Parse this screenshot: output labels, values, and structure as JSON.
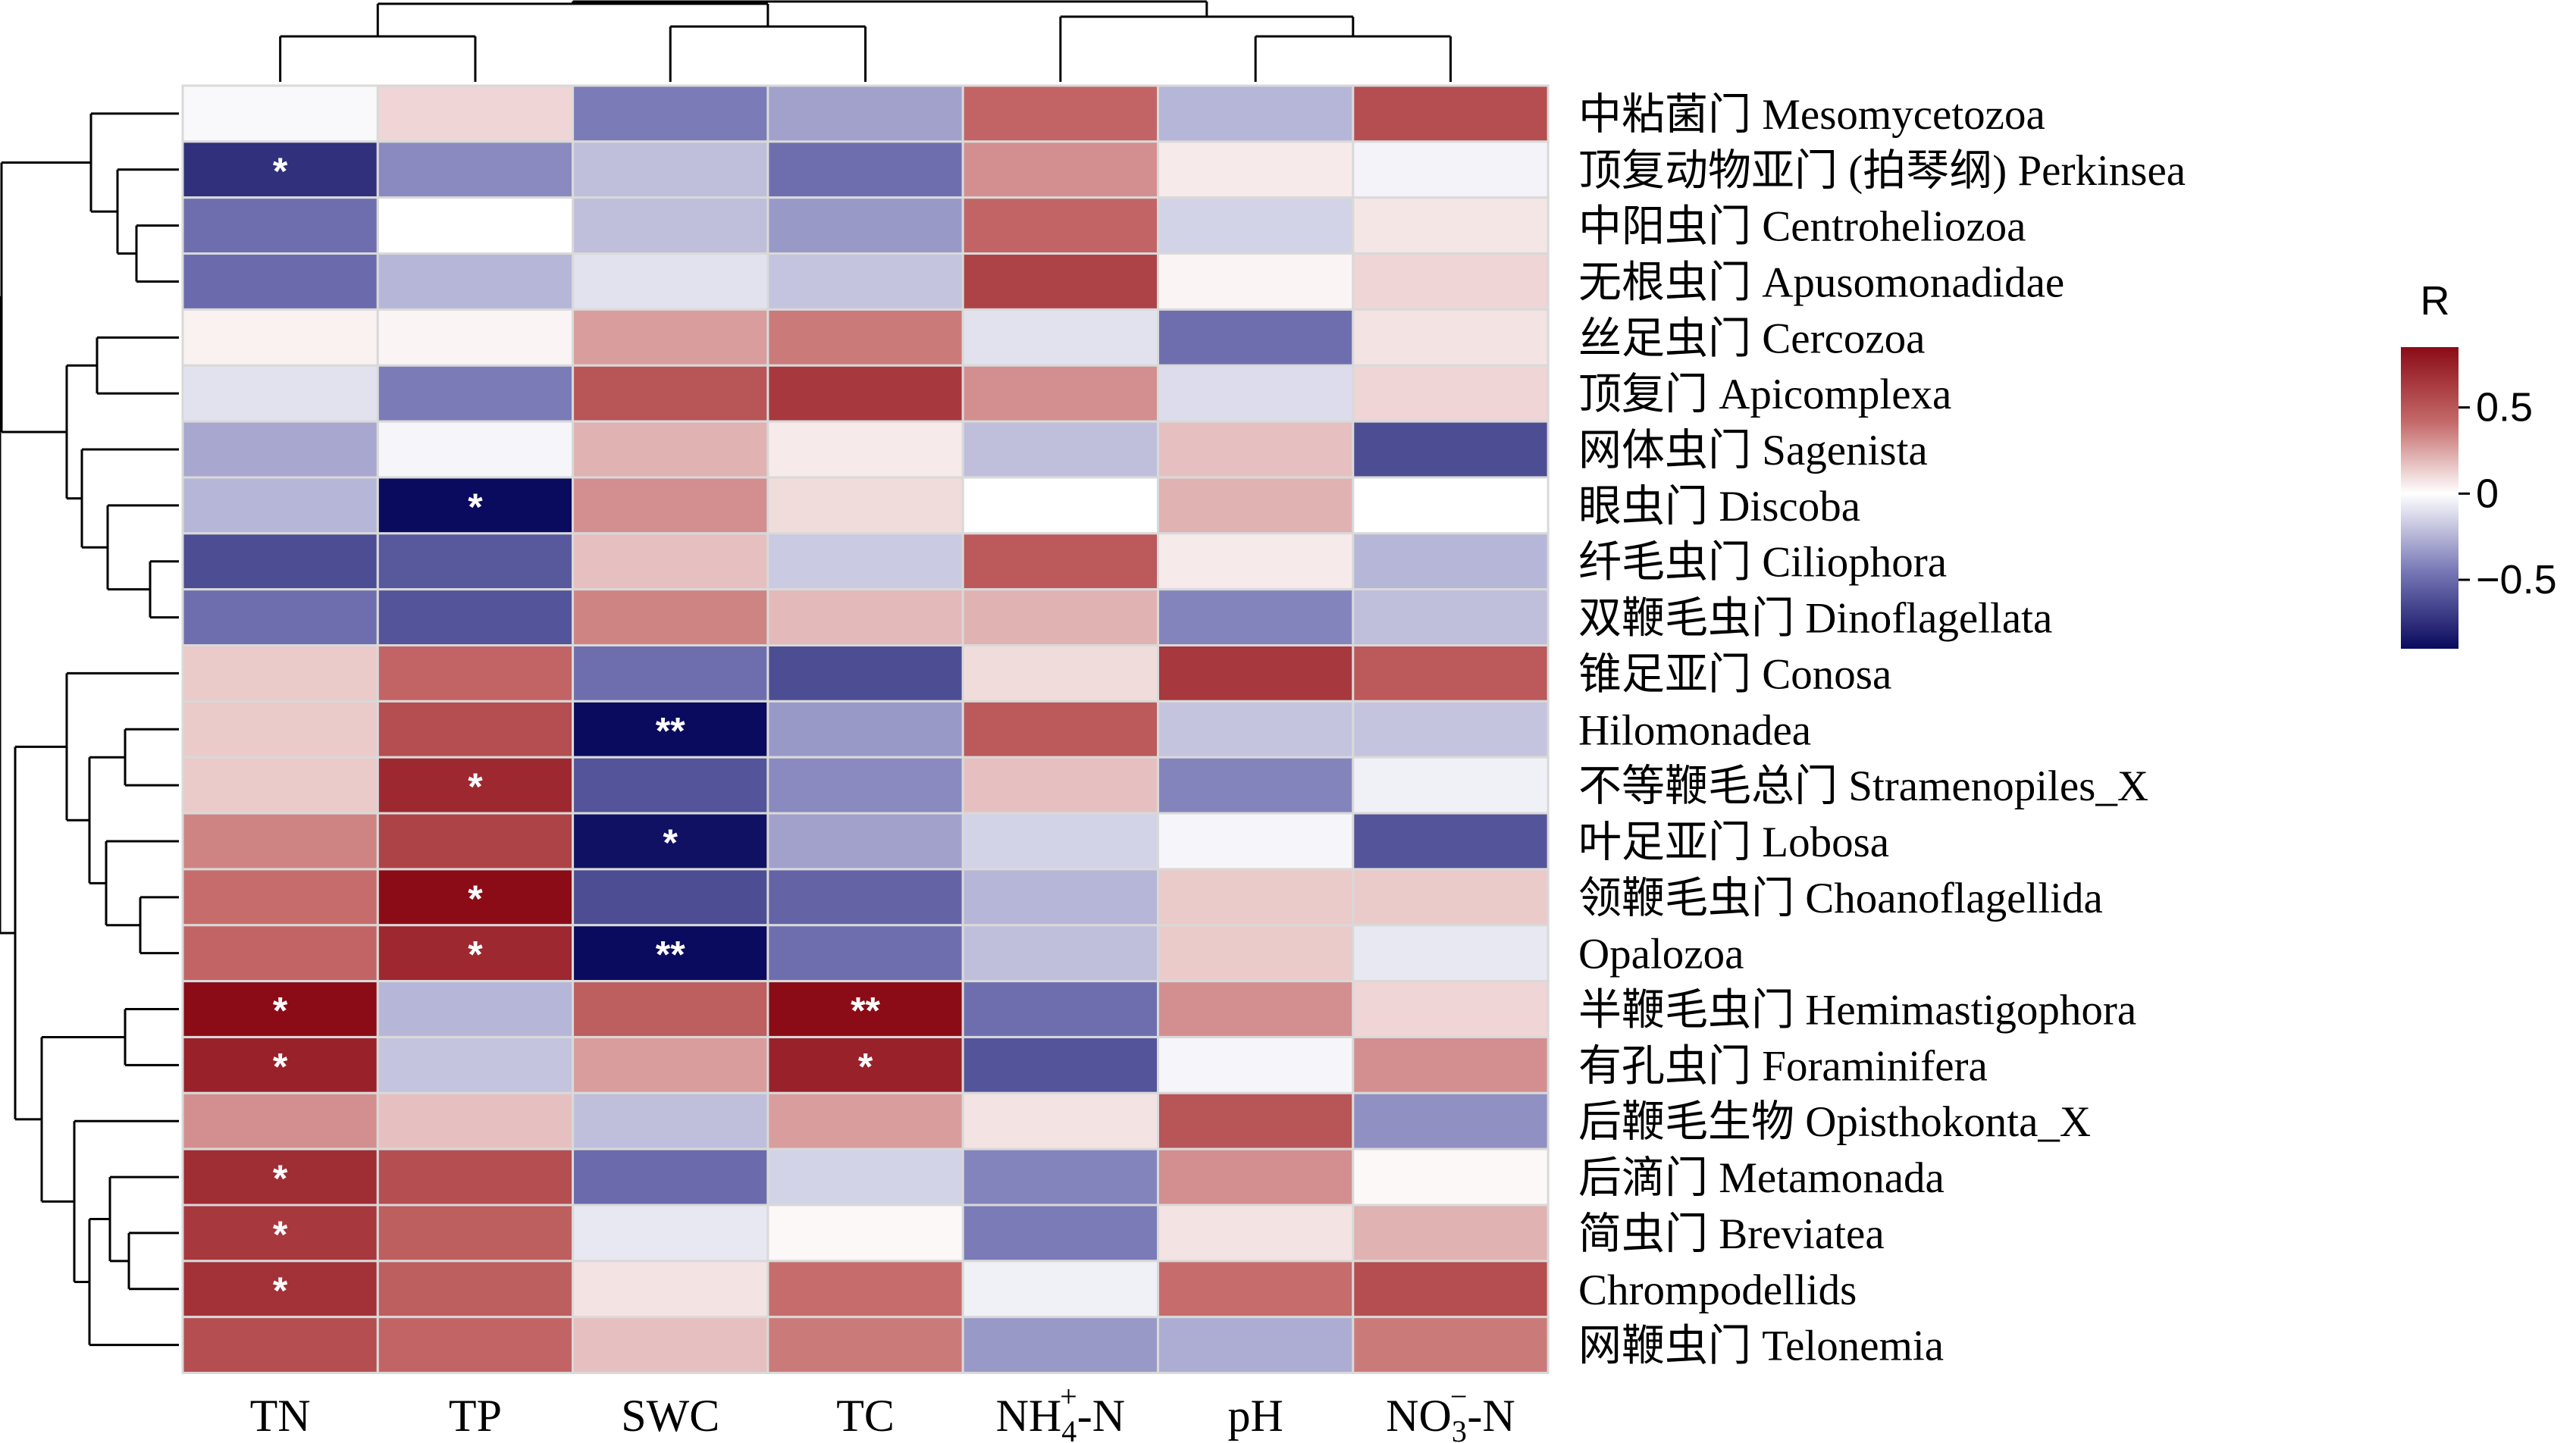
{
  "chart_data": {
    "type": "heatmap",
    "columns": [
      "TN",
      "TP",
      "SWC",
      "TC",
      "NH4+-N",
      "pH",
      "NO3−-N"
    ],
    "column_labels": [
      {
        "base": "TN",
        "sup": "",
        "sub": "",
        "tail": ""
      },
      {
        "base": "TP",
        "sup": "",
        "sub": "",
        "tail": ""
      },
      {
        "base": "SWC",
        "sup": "",
        "sub": "",
        "tail": ""
      },
      {
        "base": "TC",
        "sup": "",
        "sub": "",
        "tail": ""
      },
      {
        "base": "NH",
        "sub": "4",
        "sup": "+",
        "tail": "-N"
      },
      {
        "base": "pH",
        "sup": "",
        "sub": "",
        "tail": ""
      },
      {
        "base": "NO",
        "sub": "3",
        "sup": "−",
        "tail": "-N"
      }
    ],
    "rows": [
      "中粘菌门 Mesomycetozoa",
      "顶复动物亚门 (拍琴纲) Perkinsea",
      "中阳虫门 Centroheliozoa",
      "无根虫门 Apusomonadidae",
      "丝足虫门 Cercozoa",
      "顶复门 Apicomplexa",
      "网体虫门 Sagenista",
      "眼虫门 Discoba",
      "纤毛虫门 Ciliophora",
      "双鞭毛虫门 Dinoflagellata",
      "锥足亚门 Conosa",
      "Hilomonadea",
      "不等鞭毛总门 Stramenopiles_X",
      "叶足亚门 Lobosa",
      "领鞭毛虫门 Choanoflagellida",
      "Opalozoa",
      "半鞭毛虫门 Hemimastigophora",
      "有孔虫门 Foraminifera",
      "后鞭毛生物 Opisthokonta_X",
      "后滴门 Metamonada",
      "简虫门 Breviatea",
      "Chrompodellids",
      "网鞭虫门 Telonemia"
    ],
    "values": [
      [
        -0.02,
        0.12,
        -0.45,
        -0.32,
        0.45,
        -0.25,
        0.55
      ],
      [
        -0.78,
        -0.4,
        -0.22,
        -0.5,
        0.32,
        0.06,
        -0.04
      ],
      [
        -0.5,
        0.0,
        -0.22,
        -0.35,
        0.45,
        -0.15,
        0.07
      ],
      [
        -0.52,
        -0.25,
        -0.1,
        -0.2,
        0.6,
        0.03,
        0.12
      ],
      [
        0.04,
        0.03,
        0.28,
        0.38,
        -0.1,
        -0.5,
        0.08
      ],
      [
        -0.1,
        -0.45,
        0.52,
        0.65,
        0.32,
        -0.12,
        0.12
      ],
      [
        -0.3,
        -0.03,
        0.22,
        0.06,
        -0.22,
        0.18,
        -0.65
      ],
      [
        -0.25,
        -0.95,
        0.32,
        0.1,
        0.0,
        0.22,
        0.0
      ],
      [
        -0.65,
        -0.6,
        0.18,
        -0.18,
        0.5,
        0.06,
        -0.25
      ],
      [
        -0.5,
        -0.62,
        0.35,
        0.2,
        0.22,
        -0.42,
        -0.22
      ],
      [
        0.15,
        0.45,
        -0.5,
        -0.65,
        0.1,
        0.65,
        0.5
      ],
      [
        0.15,
        0.55,
        -1.0,
        -0.35,
        0.5,
        -0.2,
        -0.2
      ],
      [
        0.15,
        0.72,
        -0.62,
        -0.4,
        0.18,
        -0.42,
        -0.05
      ],
      [
        0.35,
        0.6,
        -0.92,
        -0.32,
        -0.15,
        -0.03,
        -0.62
      ],
      [
        0.42,
        0.85,
        -0.65,
        -0.55,
        -0.25,
        0.15,
        0.15
      ],
      [
        0.45,
        0.72,
        -1.0,
        -0.5,
        -0.22,
        0.15,
        -0.08
      ],
      [
        0.85,
        -0.25,
        0.48,
        0.9,
        -0.5,
        0.32,
        0.12
      ],
      [
        0.75,
        -0.2,
        0.28,
        0.75,
        -0.62,
        -0.03,
        0.32
      ],
      [
        0.32,
        0.18,
        -0.22,
        0.28,
        0.08,
        0.52,
        -0.38
      ],
      [
        0.7,
        0.55,
        -0.52,
        -0.15,
        -0.42,
        0.32,
        0.02
      ],
      [
        0.65,
        0.48,
        -0.08,
        0.02,
        -0.45,
        0.08,
        0.22
      ],
      [
        0.68,
        0.48,
        0.08,
        0.42,
        -0.05,
        0.42,
        0.55
      ],
      [
        0.55,
        0.45,
        0.18,
        0.38,
        -0.35,
        -0.28,
        0.38
      ]
    ],
    "significance": [
      [
        "",
        "",
        "",
        "",
        "",
        "",
        ""
      ],
      [
        "*",
        "",
        "",
        "",
        "",
        "",
        ""
      ],
      [
        "",
        "",
        "",
        "",
        "",
        "",
        ""
      ],
      [
        "",
        "",
        "",
        "",
        "",
        "",
        ""
      ],
      [
        "",
        "",
        "",
        "",
        "",
        "",
        ""
      ],
      [
        "",
        "",
        "",
        "",
        "",
        "",
        ""
      ],
      [
        "",
        "",
        "",
        "",
        "",
        "",
        ""
      ],
      [
        "",
        "*",
        "",
        "",
        "",
        "",
        ""
      ],
      [
        "",
        "",
        "",
        "",
        "",
        "",
        ""
      ],
      [
        "",
        "",
        "",
        "",
        "",
        "",
        ""
      ],
      [
        "",
        "",
        "",
        "",
        "",
        "",
        ""
      ],
      [
        "",
        "",
        "**",
        "",
        "",
        "",
        ""
      ],
      [
        "",
        "*",
        "",
        "",
        "",
        "",
        ""
      ],
      [
        "",
        "",
        "*",
        "",
        "",
        "",
        ""
      ],
      [
        "",
        "*",
        "",
        "",
        "",
        "",
        ""
      ],
      [
        "",
        "*",
        "**",
        "",
        "",
        "",
        ""
      ],
      [
        "*",
        "",
        "",
        "**",
        "",
        "",
        ""
      ],
      [
        "*",
        "",
        "",
        "*",
        "",
        "",
        ""
      ],
      [
        "",
        "",
        "",
        "",
        "",
        "",
        ""
      ],
      [
        "*",
        "",
        "",
        "",
        "",
        "",
        ""
      ],
      [
        "*",
        "",
        "",
        "",
        "",
        "",
        ""
      ],
      [
        "*",
        "",
        "",
        "",
        "",
        "",
        ""
      ],
      [
        "",
        "",
        "",
        "",
        "",
        "",
        ""
      ]
    ],
    "legend": {
      "title": "R",
      "ticks": [
        0.5,
        0,
        -0.5
      ],
      "tick_labels": [
        "0.5",
        "0",
        "−0.5"
      ],
      "range": [
        -0.9,
        0.85
      ],
      "colors": {
        "low": "#0a0a5e",
        "mid": "#ffffff",
        "high": "#8b0b16"
      }
    },
    "dendrograms": {
      "rows": "hierarchical clustering tree drawn on the left",
      "columns": "hierarchical clustering tree drawn on top"
    }
  }
}
